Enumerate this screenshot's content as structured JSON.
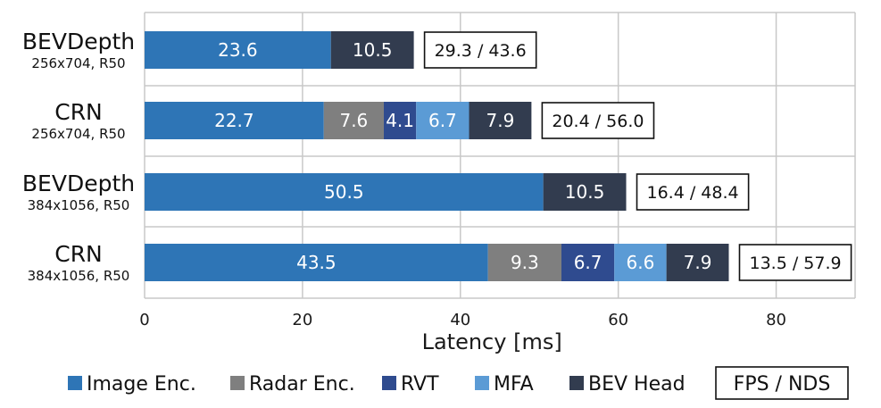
{
  "chart_data": {
    "type": "bar",
    "orientation": "horizontal",
    "stacked": true,
    "xlabel": "Latency [ms]",
    "xlim": [
      0,
      90
    ],
    "xticks": [
      0,
      20,
      40,
      60,
      80
    ],
    "grid": "x",
    "legend_placement": "bottom",
    "components": [
      {
        "name": "Image Enc.",
        "color": "#2e75b6"
      },
      {
        "name": "Radar Enc.",
        "color": "#7f7f7f"
      },
      {
        "name": "RVT",
        "color": "#2f4b8f"
      },
      {
        "name": "MFA",
        "color": "#5b9bd5"
      },
      {
        "name": "BEV Head",
        "color": "#323c4f"
      }
    ],
    "extra_legend": "FPS / NDS",
    "rows": [
      {
        "model": "BEVDepth",
        "config": "256x704, R50",
        "segments": [
          {
            "component": "Image Enc.",
            "value": 23.6,
            "label": "23.6"
          },
          {
            "component": "BEV Head",
            "value": 10.5,
            "label": "10.5"
          }
        ],
        "fps_nds": "29.3 / 43.6"
      },
      {
        "model": "CRN",
        "config": "256x704, R50",
        "segments": [
          {
            "component": "Image Enc.",
            "value": 22.7,
            "label": "22.7"
          },
          {
            "component": "Radar Enc.",
            "value": 7.6,
            "label": "7.6"
          },
          {
            "component": "RVT",
            "value": 4.1,
            "label": "4.1"
          },
          {
            "component": "MFA",
            "value": 6.7,
            "label": "6.7"
          },
          {
            "component": "BEV Head",
            "value": 7.9,
            "label": "7.9"
          }
        ],
        "fps_nds": "20.4 / 56.0"
      },
      {
        "model": "BEVDepth",
        "config": "384x1056, R50",
        "segments": [
          {
            "component": "Image Enc.",
            "value": 50.5,
            "label": "50.5"
          },
          {
            "component": "BEV Head",
            "value": 10.5,
            "label": "10.5"
          }
        ],
        "fps_nds": "16.4 / 48.4"
      },
      {
        "model": "CRN",
        "config": "384x1056, R50",
        "segments": [
          {
            "component": "Image Enc.",
            "value": 43.5,
            "label": "43.5"
          },
          {
            "component": "Radar Enc.",
            "value": 9.3,
            "label": "9.3"
          },
          {
            "component": "RVT",
            "value": 6.7,
            "label": "6.7"
          },
          {
            "component": "MFA",
            "value": 6.6,
            "label": "6.6"
          },
          {
            "component": "BEV Head",
            "value": 7.9,
            "label": "7.9"
          }
        ],
        "fps_nds": "13.5 / 57.9"
      }
    ]
  }
}
